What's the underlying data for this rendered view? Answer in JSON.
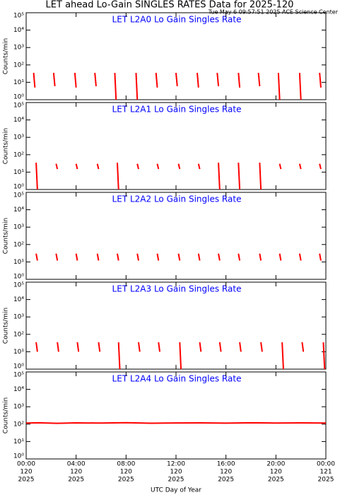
{
  "title": "LET ahead Lo-Gain SINGLES RATES Data for 2025-120",
  "subtitle": "Tue May  6 09:57:51 2025 ACE Science Center",
  "chart_data": [
    {
      "type": "line",
      "title": "LET L2A0 Lo Gain Singles Rate",
      "ylabel": "Counts/min",
      "color": "#ff0000",
      "log": true,
      "ylim": [
        1,
        100000
      ],
      "yticks": [
        {
          "value": 1,
          "label": "10⁰"
        },
        {
          "value": 10,
          "label": "10¹"
        },
        {
          "value": 100,
          "label": "10²"
        },
        {
          "value": 1000,
          "label": "10³"
        },
        {
          "value": 10000,
          "label": "10⁴"
        },
        {
          "value": 100000,
          "label": "10⁵"
        }
      ],
      "x": [
        0.6,
        0.7,
        null,
        2.2,
        2.3,
        null,
        3.9,
        4.0,
        null,
        5.5,
        5.6,
        null,
        7.1,
        7.2,
        null,
        8.8,
        8.9,
        null,
        10.4,
        10.5,
        null,
        12.0,
        12.1,
        null,
        13.7,
        13.8,
        null,
        15.3,
        15.4,
        null,
        17.0,
        17.1,
        null,
        18.6,
        18.7,
        null,
        20.2,
        20.3,
        null,
        21.9,
        22.0,
        null,
        23.5,
        23.6
      ],
      "values": [
        35,
        5,
        null,
        35,
        6,
        null,
        35,
        5,
        null,
        35,
        6,
        null,
        35,
        1,
        null,
        35,
        1,
        null,
        35,
        5,
        null,
        35,
        6,
        null,
        35,
        5,
        null,
        35,
        6,
        null,
        35,
        5,
        null,
        35,
        6,
        null,
        35,
        1,
        null,
        35,
        1,
        null,
        35,
        5
      ]
    },
    {
      "type": "line",
      "title": "LET L2A1 Lo Gain Singles Rate",
      "ylabel": "Counts/min",
      "color": "#ff0000",
      "log": true,
      "ylim": [
        1,
        100000
      ],
      "yticks": [
        {
          "value": 1,
          "label": "10⁰"
        },
        {
          "value": 10,
          "label": "10¹"
        },
        {
          "value": 100,
          "label": "10²"
        },
        {
          "value": 1000,
          "label": "10³"
        },
        {
          "value": 10000,
          "label": "10⁴"
        },
        {
          "value": 100000,
          "label": "10⁵"
        }
      ],
      "x": [
        0.8,
        0.9,
        null,
        2.4,
        2.5,
        null,
        4.0,
        4.1,
        null,
        5.7,
        5.8,
        null,
        7.3,
        7.4,
        null,
        8.9,
        9.0,
        null,
        10.5,
        10.6,
        null,
        12.2,
        12.3,
        null,
        13.8,
        13.9,
        null,
        15.4,
        15.5,
        null,
        17.0,
        17.1,
        null,
        18.7,
        18.8,
        null,
        20.3,
        20.4,
        null,
        21.9,
        22.0,
        null,
        23.5,
        23.6
      ],
      "values": [
        35,
        1,
        null,
        30,
        15,
        null,
        30,
        15,
        null,
        30,
        15,
        null,
        35,
        1,
        null,
        30,
        15,
        null,
        30,
        15,
        null,
        30,
        15,
        null,
        30,
        15,
        null,
        35,
        1,
        null,
        35,
        1,
        null,
        35,
        1,
        null,
        30,
        15,
        null,
        30,
        15,
        null,
        30,
        15
      ]
    },
    {
      "type": "line",
      "title": "LET L2A2 Lo Gain Singles Rate",
      "ylabel": "Counts/min",
      "color": "#ff0000",
      "log": true,
      "ylim": [
        1,
        100000
      ],
      "yticks": [
        {
          "value": 1,
          "label": "10⁰"
        },
        {
          "value": 10,
          "label": "10¹"
        },
        {
          "value": 100,
          "label": "10²"
        },
        {
          "value": 1000,
          "label": "10³"
        },
        {
          "value": 10000,
          "label": "10⁴"
        },
        {
          "value": 100000,
          "label": "10⁵"
        }
      ],
      "x": [
        0.8,
        0.9,
        null,
        2.4,
        2.5,
        null,
        4.0,
        4.1,
        null,
        5.7,
        5.8,
        null,
        7.3,
        7.4,
        null,
        8.9,
        9.0,
        null,
        10.5,
        10.6,
        null,
        12.2,
        12.3,
        null,
        13.8,
        13.9,
        null,
        15.4,
        15.5,
        null,
        17.0,
        17.1,
        null,
        18.7,
        18.8,
        null,
        20.3,
        20.4,
        null,
        21.9,
        22.0,
        null,
        23.5,
        23.6
      ],
      "values": [
        30,
        12,
        null,
        30,
        12,
        null,
        30,
        12,
        null,
        30,
        12,
        null,
        30,
        12,
        null,
        30,
        12,
        null,
        30,
        12,
        null,
        30,
        12,
        null,
        30,
        12,
        null,
        30,
        12,
        null,
        30,
        12,
        null,
        30,
        12,
        null,
        30,
        12,
        null,
        30,
        12,
        null,
        30,
        12
      ]
    },
    {
      "type": "line",
      "title": "LET L2A3 Lo Gain Singles Rate",
      "ylabel": "Counts/min",
      "color": "#ff0000",
      "log": true,
      "ylim": [
        1,
        100000
      ],
      "yticks": [
        {
          "value": 1,
          "label": "10⁰"
        },
        {
          "value": 10,
          "label": "10¹"
        },
        {
          "value": 100,
          "label": "10²"
        },
        {
          "value": 1000,
          "label": "10³"
        },
        {
          "value": 10000,
          "label": "10⁴"
        },
        {
          "value": 100000,
          "label": "10⁵"
        }
      ],
      "x": [
        0.8,
        0.9,
        null,
        2.5,
        2.6,
        null,
        4.1,
        4.2,
        null,
        5.8,
        5.9,
        null,
        7.4,
        7.5,
        null,
        9.0,
        9.1,
        null,
        10.6,
        10.7,
        null,
        12.3,
        12.4,
        null,
        13.9,
        14.0,
        null,
        15.5,
        15.6,
        null,
        17.1,
        17.2,
        null,
        18.8,
        18.9,
        null,
        20.5,
        20.6,
        null,
        22.1,
        22.2,
        null,
        23.8,
        23.9
      ],
      "values": [
        35,
        10,
        null,
        35,
        10,
        null,
        35,
        10,
        null,
        35,
        10,
        null,
        35,
        1,
        null,
        35,
        10,
        null,
        35,
        10,
        null,
        35,
        1,
        null,
        35,
        10,
        null,
        35,
        10,
        null,
        35,
        10,
        null,
        35,
        10,
        null,
        35,
        1,
        null,
        35,
        10,
        null,
        35,
        1
      ]
    },
    {
      "type": "line",
      "title": "LET L2A4 Lo Gain Singles Rate",
      "ylabel": "Counts/min",
      "color": "#ff0000",
      "log": true,
      "ylim": [
        1,
        100000
      ],
      "yticks": [
        {
          "value": 1,
          "label": "10⁰"
        },
        {
          "value": 10,
          "label": "10¹"
        },
        {
          "value": 100,
          "label": "10²"
        },
        {
          "value": 1000,
          "label": "10³"
        },
        {
          "value": 10000,
          "label": "10⁴"
        },
        {
          "value": 100000,
          "label": "10⁵"
        }
      ],
      "x": [
        0,
        1,
        2.5,
        4,
        6,
        8,
        10,
        12,
        14,
        16,
        18,
        20,
        22,
        24
      ],
      "values": [
        115,
        120,
        112,
        118,
        115,
        121,
        113,
        117,
        119,
        114,
        120,
        116,
        118,
        115
      ],
      "xlabel": "UTC Day of Year",
      "xlim": [
        0,
        24
      ],
      "xticks": [
        {
          "value": 0,
          "label": "00:00",
          "doy": "120",
          "year": "2025"
        },
        {
          "value": 4,
          "label": "04:00",
          "doy": "120",
          "year": "2025"
        },
        {
          "value": 8,
          "label": "08:00",
          "doy": "120",
          "year": "2025"
        },
        {
          "value": 12,
          "label": "12:00",
          "doy": "120",
          "year": "2025"
        },
        {
          "value": 16,
          "label": "16:00",
          "doy": "120",
          "year": "2025"
        },
        {
          "value": 20,
          "label": "20:00",
          "doy": "120",
          "year": "2025"
        },
        {
          "value": 24,
          "label": "00:00",
          "doy": "121",
          "year": "2025"
        }
      ]
    }
  ]
}
